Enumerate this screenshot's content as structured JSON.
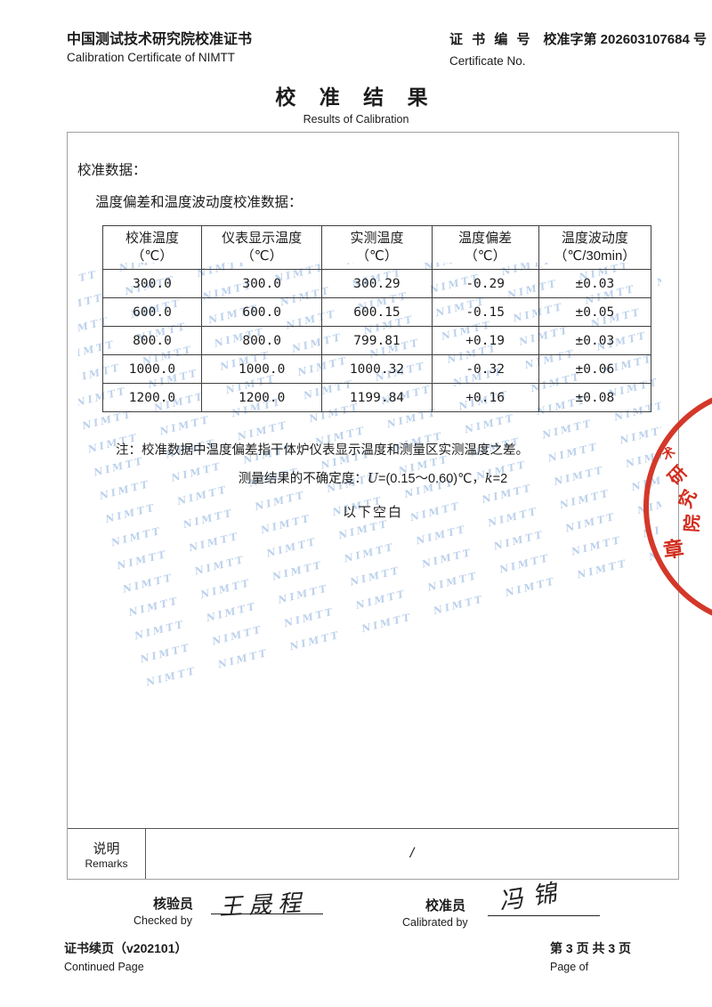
{
  "header": {
    "org_title_zh": "中国测试技术研究院校准证书",
    "org_title_en": "Calibration Certificate of NIMTT",
    "cert_no_label_zh": "证 书 编 号",
    "cert_no_value": "校准字第 202603107684 号",
    "cert_no_label_en": "Certificate No."
  },
  "title": {
    "zh": "校 准 结 果",
    "en": "Results of Calibration"
  },
  "body": {
    "section_label": "校准数据：",
    "table_caption": "温度偏差和温度波动度校准数据：",
    "note": "注：校准数据中温度偏差指干体炉仪表显示温度和测量区实测温度之差。",
    "uncertainty": {
      "prefix": "测量结果的不确定度：",
      "u_symbol": "U",
      "mid": "=(0.15～0.60)℃，",
      "k_symbol": "k",
      "suffix": "=2"
    },
    "blank_below": "以下空白"
  },
  "table": {
    "headers": [
      {
        "l1": "校准温度",
        "l2": "（℃）"
      },
      {
        "l1": "仪表显示温度",
        "l2": "（℃）"
      },
      {
        "l1": "实测温度",
        "l2": "（℃）"
      },
      {
        "l1": "温度偏差",
        "l2": "（℃）"
      },
      {
        "l1": "温度波动度",
        "l2": "（℃/30min）"
      }
    ],
    "rows": [
      [
        "300.0",
        "300.0",
        "300.29",
        "-0.29",
        "±0.03"
      ],
      [
        "600.0",
        "600.0",
        "600.15",
        "-0.15",
        "±0.05"
      ],
      [
        "800.0",
        "800.0",
        "799.81",
        "+0.19",
        "±0.03"
      ],
      [
        "1000.0",
        "1000.0",
        "1000.32",
        "-0.32",
        "±0.06"
      ],
      [
        "1200.0",
        "1200.0",
        "1199.84",
        "+0.16",
        "±0.08"
      ]
    ]
  },
  "remarks": {
    "label_zh": "说明",
    "label_en": "Remarks",
    "value": "/"
  },
  "signatures": {
    "checked": {
      "label_zh": "核验员",
      "label_en": "Checked by",
      "name": "王晟程"
    },
    "calibrated": {
      "label_zh": "校准员",
      "label_en": "Calibrated by",
      "name": "冯锦"
    }
  },
  "footer": {
    "left_zh": "证书续页（v202101）",
    "left_en": "Continued Page",
    "right_zh": "第 3 页 共 3 页",
    "right_en": "Page of"
  },
  "stamp": {
    "color": "#d22d1e",
    "arc_char_1": "术",
    "arc_char_2": "研",
    "arc_char_3": "究",
    "arc_char_4": "院",
    "bottom_char": "章"
  },
  "watermark": {
    "text": "NIMTT",
    "color": "#bdd2ec",
    "row": "NIMTT NIMTT NIMTT NIMTT NIMTT NIMTT NIMTT NIMTT NIMTT NIMTT NIMTT NIMTT"
  }
}
